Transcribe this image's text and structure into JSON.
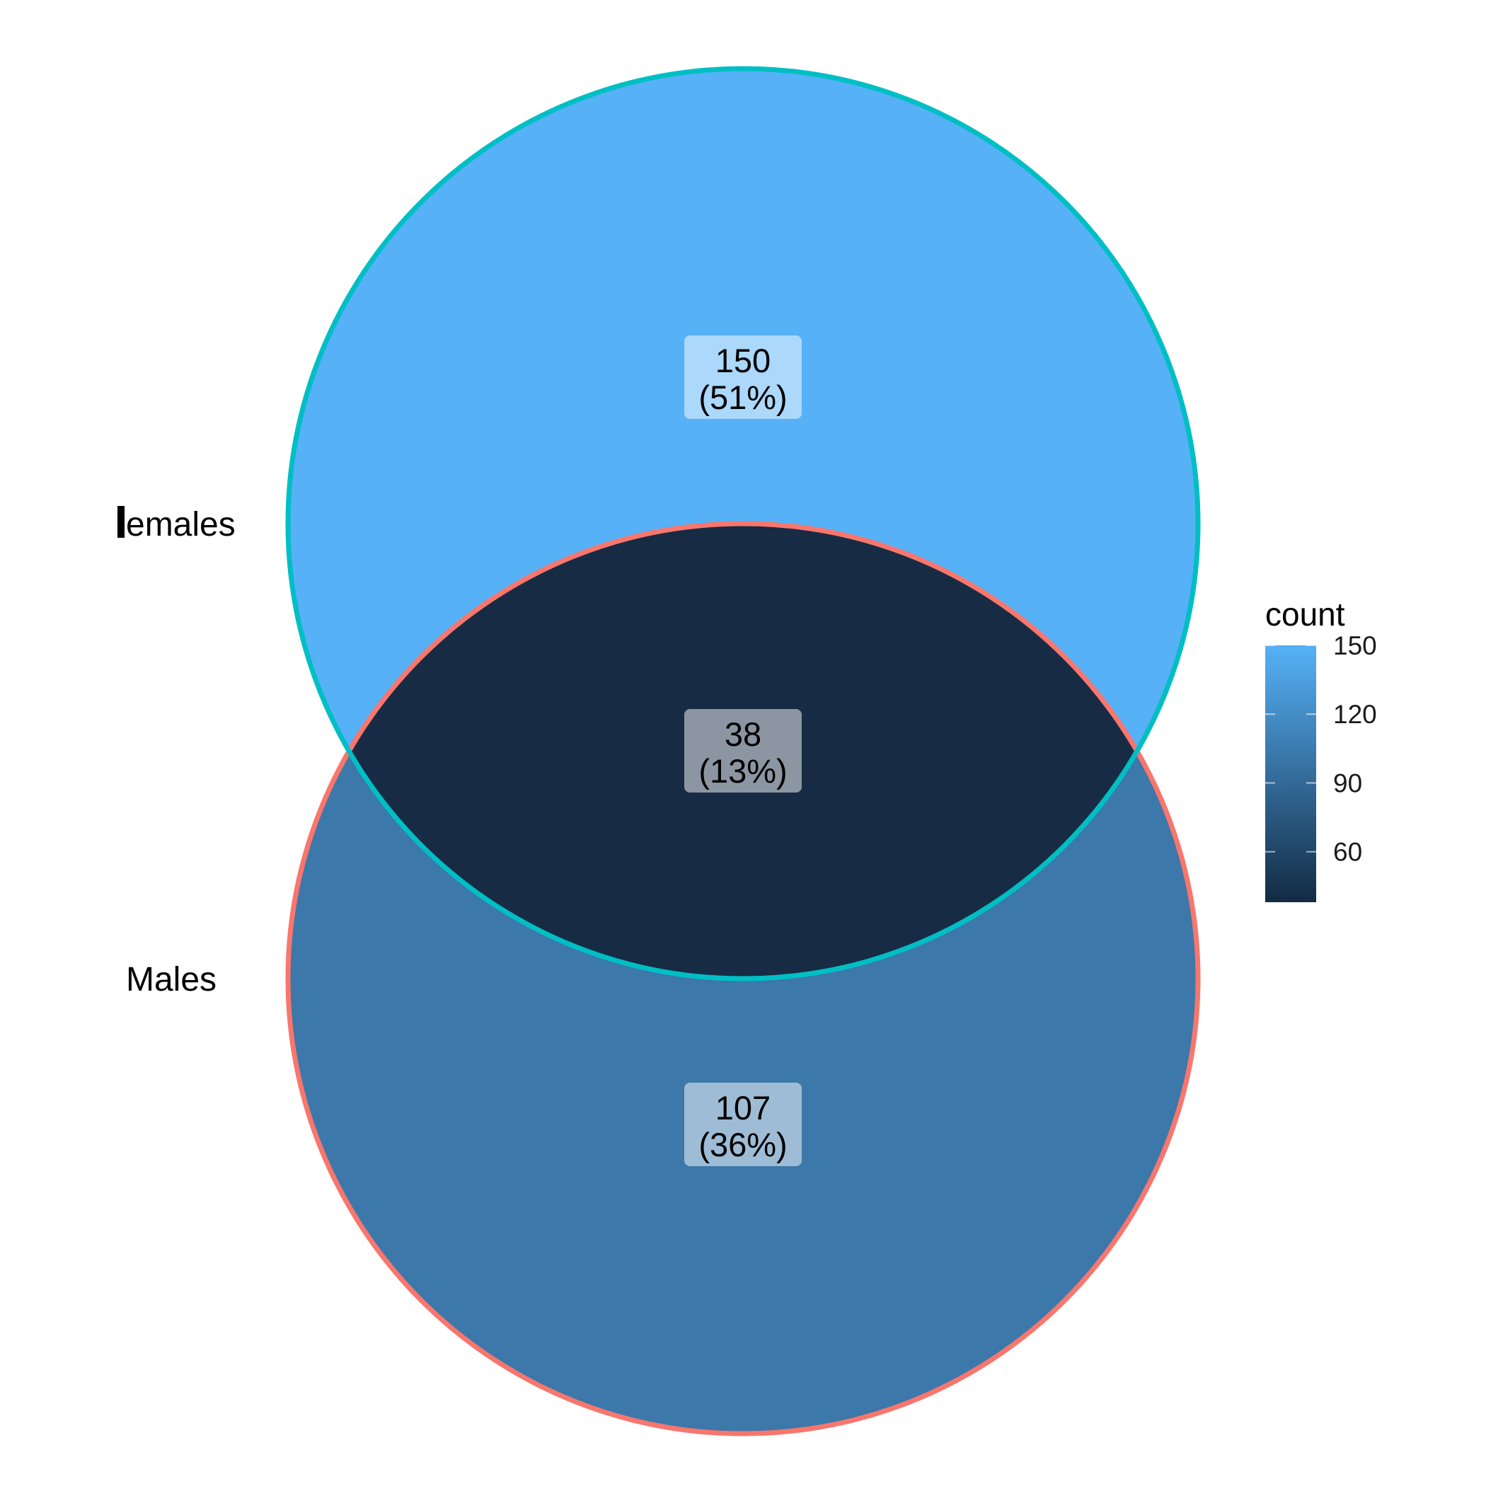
{
  "sets": [
    {
      "name": "Females",
      "display_label": "emales",
      "stroke": "#00BFC4"
    },
    {
      "name": "Males",
      "display_label": "Males",
      "stroke": "#F8766D"
    }
  ],
  "regions": [
    {
      "id": "females-only",
      "sets": [
        "Females"
      ],
      "count": 150,
      "count_label": "150",
      "percent_label": "(51%)",
      "fill": "#56B1F7"
    },
    {
      "id": "intersection",
      "sets": [
        "Females",
        "Males"
      ],
      "count": 38,
      "count_label": "38",
      "percent_label": "(13%)",
      "fill": "#172C44"
    },
    {
      "id": "males-only",
      "sets": [
        "Males"
      ],
      "count": 107,
      "count_label": "107",
      "percent_label": "(36%)",
      "fill": "#3C78AA"
    }
  ],
  "legend": {
    "title": "count",
    "ticks": [
      {
        "value": 60,
        "label": "60"
      },
      {
        "value": 90,
        "label": "90"
      },
      {
        "value": 120,
        "label": "120"
      },
      {
        "value": 150,
        "label": "150"
      }
    ],
    "range": [
      38,
      150
    ],
    "color_low": "#132B43",
    "color_high": "#56B1F7"
  }
}
